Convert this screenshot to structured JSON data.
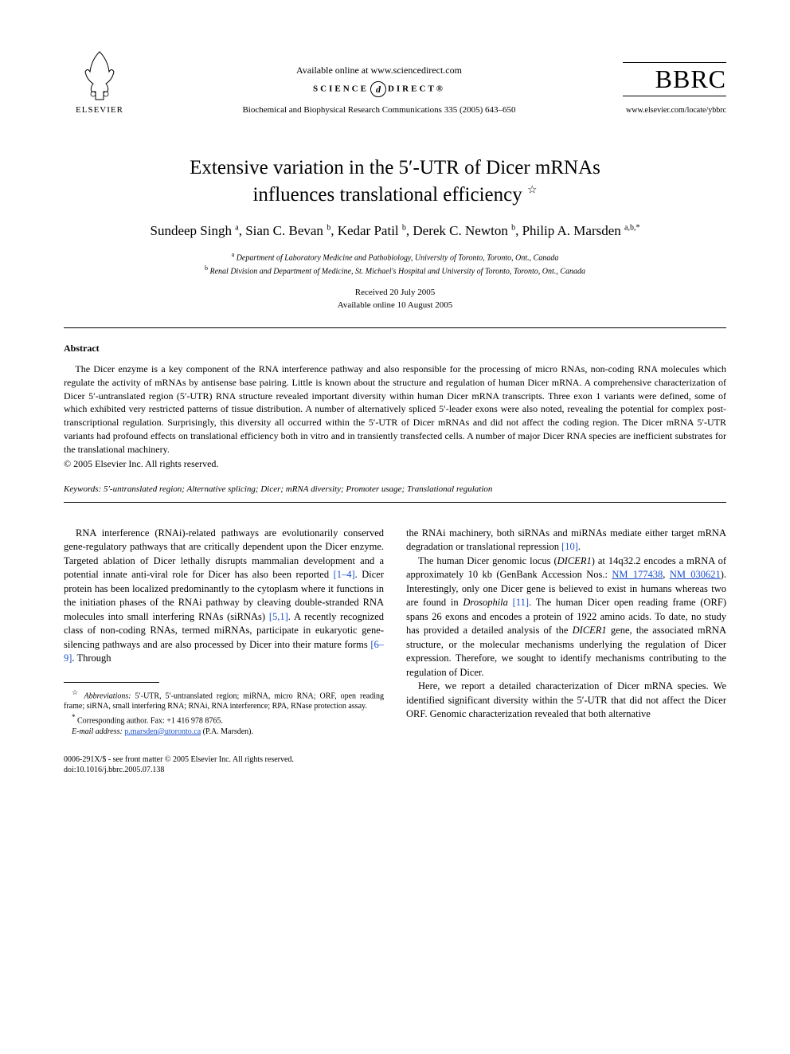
{
  "header": {
    "publisher_name": "ELSEVIER",
    "available_text": "Available online at www.sciencedirect.com",
    "sciencedirect_left": "SCIENCE",
    "sciencedirect_right": "DIRECT®",
    "journal_citation": "Biochemical and Biophysical Research Communications 335 (2005) 643–650",
    "journal_abbrev": "BBRC",
    "locate_url": "www.elsevier.com/locate/ybbrc"
  },
  "title": {
    "line1": "Extensive variation in the 5′-UTR of Dicer mRNAs",
    "line2": "influences translational efficiency",
    "star": "☆"
  },
  "authors_html": "Sundeep Singh <sup>a</sup>, Sian C. Bevan <sup>b</sup>, Kedar Patil <sup>b</sup>, Derek C. Newton <sup>b</sup>, Philip A. Marsden <sup>a,b,*</sup>",
  "affiliations": {
    "a": "Department of Laboratory Medicine and Pathobiology, University of Toronto, Toronto, Ont., Canada",
    "b": "Renal Division and Department of Medicine, St. Michael's Hospital and University of Toronto, Toronto, Ont., Canada"
  },
  "dates": {
    "received": "Received 20 July 2005",
    "available": "Available online 10 August 2005"
  },
  "abstract": {
    "heading": "Abstract",
    "text": "The Dicer enzyme is a key component of the RNA interference pathway and also responsible for the processing of micro RNAs, non-coding RNA molecules which regulate the activity of mRNAs by antisense base pairing. Little is known about the structure and regulation of human Dicer mRNA. A comprehensive characterization of Dicer 5′-untranslated region (5′-UTR) RNA structure revealed important diversity within human Dicer mRNA transcripts. Three exon 1 variants were defined, some of which exhibited very restricted patterns of tissue distribution. A number of alternatively spliced 5′-leader exons were also noted, revealing the potential for complex post-transcriptional regulation. Surprisingly, this diversity all occurred within the 5′-UTR of Dicer mRNAs and did not affect the coding region. The Dicer mRNA 5′-UTR variants had profound effects on translational efficiency both in vitro and in transiently transfected cells. A number of major Dicer RNA species are inefficient substrates for the translational machinery.",
    "copyright": "© 2005 Elsevier Inc. All rights reserved."
  },
  "keywords": {
    "label": "Keywords:",
    "text": "5′-untranslated region; Alternative splicing; Dicer; mRNA diversity; Promoter usage; Translational regulation"
  },
  "body": {
    "left": {
      "p1_a": "RNA interference (RNAi)-related pathways are evolutionarily conserved gene-regulatory pathways that are critically dependent upon the Dicer enzyme. Targeted ablation of Dicer lethally disrupts mammalian development and a potential innate anti-viral role for Dicer has also been reported ",
      "p1_ref1": "[1–4]",
      "p1_b": ". Dicer protein has been localized predominantly to the cytoplasm where it functions in the initiation phases of the RNAi pathway by cleaving double-stranded RNA molecules into small interfering RNAs (siRNAs) ",
      "p1_ref2": "[5,1]",
      "p1_c": ". A recently recognized class of non-coding RNAs, termed miRNAs, participate in eukaryotic gene-silencing pathways and are also processed by Dicer into their mature forms ",
      "p1_ref3": "[6–9]",
      "p1_d": ". Through"
    },
    "right": {
      "p1_a": "the RNAi machinery, both siRNAs and miRNAs mediate either target mRNA degradation or translational repression ",
      "p1_ref1": "[10]",
      "p1_b": ".",
      "p2_a": "The human Dicer genomic locus (",
      "p2_gene1": "DICER1",
      "p2_b": ") at 14q32.2 encodes a mRNA of approximately 10 kb (GenBank Accession Nos.: ",
      "p2_acc1": "NM_177438",
      "p2_c": ", ",
      "p2_acc2": "NM_030621",
      "p2_d": "). Interestingly, only one Dicer gene is believed to exist in humans whereas two are found in ",
      "p2_species": "Drosophila",
      "p2_e": " ",
      "p2_ref2": "[11]",
      "p2_f": ". The human Dicer open reading frame (ORF) spans 26 exons and encodes a protein of 1922 amino acids. To date, no study has provided a detailed analysis of the ",
      "p2_gene2": "DICER1",
      "p2_g": " gene, the associated mRNA structure, or the molecular mechanisms underlying the regulation of Dicer expression. Therefore, we sought to identify mechanisms contributing to the regulation of Dicer.",
      "p3": "Here, we report a detailed characterization of Dicer mRNA species. We identified significant diversity within the 5′-UTR that did not affect the Dicer ORF. Genomic characterization revealed that both alternative"
    }
  },
  "footnotes": {
    "abbrev_label": "Abbreviations:",
    "abbrev_text": "5′-UTR, 5′-untranslated region; miRNA, micro RNA; ORF, open reading frame; siRNA, small interfering RNA; RNAi, RNA interference; RPA, RNase protection assay.",
    "corr_label": "Corresponding author. Fax: +1 416 978 8765.",
    "email_label": "E-mail address:",
    "email": "p.marsden@utoronto.ca",
    "email_suffix": "(P.A. Marsden)."
  },
  "bottom": {
    "line1": "0006-291X/$ - see front matter © 2005 Elsevier Inc. All rights reserved.",
    "line2": "doi:10.1016/j.bbrc.2005.07.138"
  },
  "colors": {
    "link": "#1a4fc9",
    "text": "#000000",
    "background": "#ffffff"
  }
}
